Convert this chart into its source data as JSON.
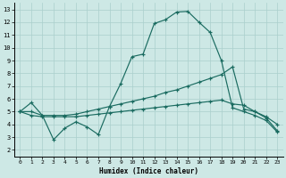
{
  "xlabel": "Humidex (Indice chaleur)",
  "background_color": "#cde8e5",
  "grid_color": "#aacfcc",
  "line_color": "#1a6b60",
  "xlim": [
    -0.5,
    23.5
  ],
  "ylim": [
    1.5,
    13.5
  ],
  "xticks": [
    0,
    1,
    2,
    3,
    4,
    5,
    6,
    7,
    8,
    9,
    10,
    11,
    12,
    13,
    14,
    15,
    16,
    17,
    18,
    19,
    20,
    21,
    22,
    23
  ],
  "yticks": [
    2,
    3,
    4,
    5,
    6,
    7,
    8,
    9,
    10,
    11,
    12,
    13
  ],
  "line1_x": [
    0,
    1,
    2,
    3,
    4,
    5,
    6,
    7,
    8,
    9,
    10,
    11,
    12,
    13,
    14,
    15,
    16,
    17,
    18,
    19,
    20,
    21,
    22,
    23
  ],
  "line1_y": [
    5.0,
    5.7,
    4.7,
    2.8,
    3.7,
    4.2,
    3.8,
    3.2,
    5.4,
    7.2,
    9.3,
    9.5,
    11.9,
    12.2,
    12.8,
    12.85,
    12.0,
    11.2,
    9.0,
    5.3,
    5.0,
    4.7,
    4.3,
    3.4
  ],
  "line2_x": [
    0,
    1,
    2,
    3,
    4,
    5,
    6,
    7,
    8,
    9,
    10,
    11,
    12,
    13,
    14,
    15,
    16,
    17,
    18,
    19,
    20,
    21,
    22,
    23
  ],
  "line2_y": [
    5.0,
    5.0,
    4.7,
    4.7,
    4.7,
    4.8,
    5.0,
    5.2,
    5.4,
    5.6,
    5.8,
    6.0,
    6.2,
    6.5,
    6.7,
    7.0,
    7.3,
    7.6,
    7.9,
    8.5,
    5.2,
    5.0,
    4.6,
    4.0
  ],
  "line3_x": [
    0,
    1,
    2,
    3,
    4,
    5,
    6,
    7,
    8,
    9,
    10,
    11,
    12,
    13,
    14,
    15,
    16,
    17,
    18,
    19,
    20,
    21,
    22,
    23
  ],
  "line3_y": [
    5.0,
    4.7,
    4.6,
    4.6,
    4.6,
    4.6,
    4.7,
    4.8,
    4.9,
    5.0,
    5.1,
    5.2,
    5.3,
    5.4,
    5.5,
    5.6,
    5.7,
    5.8,
    5.9,
    5.6,
    5.5,
    5.0,
    4.5,
    3.5
  ]
}
